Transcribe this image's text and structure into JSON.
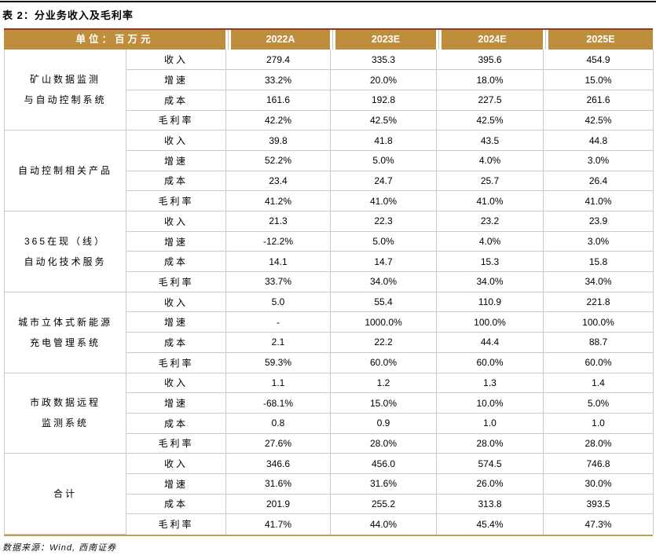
{
  "title": "表 2：分业务收入及毛利率",
  "source_note": "数据来源：Wind, 西南证券",
  "colors": {
    "header_gold": "#BE8E3D",
    "header_top_line": "#8E3B2B",
    "table_bottom_line": "#C89B52",
    "grid_line": "#C9C9C9",
    "header_text": "#FFFFFF",
    "title_rule": "#000000"
  },
  "table": {
    "unit_label": "单位：百万元",
    "year_headers": [
      "2022A",
      "2023E",
      "2024E",
      "2025E"
    ],
    "groups": [
      {
        "name": "矿山数据监测\n与自动控制系统",
        "rows": [
          {
            "metric": "收入",
            "values": [
              "279.4",
              "335.3",
              "395.6",
              "454.9"
            ]
          },
          {
            "metric": "增速",
            "values": [
              "33.2%",
              "20.0%",
              "18.0%",
              "15.0%"
            ]
          },
          {
            "metric": "成本",
            "values": [
              "161.6",
              "192.8",
              "227.5",
              "261.6"
            ]
          },
          {
            "metric": "毛利率",
            "values": [
              "42.2%",
              "42.5%",
              "42.5%",
              "42.5%"
            ]
          }
        ]
      },
      {
        "name": "自动控制相关产品",
        "rows": [
          {
            "metric": "收入",
            "values": [
              "39.8",
              "41.8",
              "43.5",
              "44.8"
            ]
          },
          {
            "metric": "增速",
            "values": [
              "52.2%",
              "5.0%",
              "4.0%",
              "3.0%"
            ]
          },
          {
            "metric": "成本",
            "values": [
              "23.4",
              "24.7",
              "25.7",
              "26.4"
            ]
          },
          {
            "metric": "毛利率",
            "values": [
              "41.2%",
              "41.0%",
              "41.0%",
              "41.0%"
            ]
          }
        ]
      },
      {
        "name": "365在现（线）\n自动化技术服务",
        "rows": [
          {
            "metric": "收入",
            "values": [
              "21.3",
              "22.3",
              "23.2",
              "23.9"
            ]
          },
          {
            "metric": "增速",
            "values": [
              "-12.2%",
              "5.0%",
              "4.0%",
              "3.0%"
            ]
          },
          {
            "metric": "成本",
            "values": [
              "14.1",
              "14.7",
              "15.3",
              "15.8"
            ]
          },
          {
            "metric": "毛利率",
            "values": [
              "33.7%",
              "34.0%",
              "34.0%",
              "34.0%"
            ]
          }
        ]
      },
      {
        "name": "城市立体式新能源\n充电管理系统",
        "rows": [
          {
            "metric": "收入",
            "values": [
              "5.0",
              "55.4",
              "110.9",
              "221.8"
            ]
          },
          {
            "metric": "增速",
            "values": [
              "-",
              "1000.0%",
              "100.0%",
              "100.0%"
            ]
          },
          {
            "metric": "成本",
            "values": [
              "2.1",
              "22.2",
              "44.4",
              "88.7"
            ]
          },
          {
            "metric": "毛利率",
            "values": [
              "59.3%",
              "60.0%",
              "60.0%",
              "60.0%"
            ]
          }
        ]
      },
      {
        "name": "市政数据远程\n监测系统",
        "rows": [
          {
            "metric": "收入",
            "values": [
              "1.1",
              "1.2",
              "1.3",
              "1.4"
            ]
          },
          {
            "metric": "增速",
            "values": [
              "-68.1%",
              "15.0%",
              "10.0%",
              "5.0%"
            ]
          },
          {
            "metric": "成本",
            "values": [
              "0.8",
              "0.9",
              "1.0",
              "1.0"
            ]
          },
          {
            "metric": "毛利率",
            "values": [
              "27.6%",
              "28.0%",
              "28.0%",
              "28.0%"
            ]
          }
        ]
      },
      {
        "name": "合计",
        "rows": [
          {
            "metric": "收入",
            "values": [
              "346.6",
              "456.0",
              "574.5",
              "746.8"
            ]
          },
          {
            "metric": "增速",
            "values": [
              "31.6%",
              "31.6%",
              "26.0%",
              "30.0%"
            ]
          },
          {
            "metric": "成本",
            "values": [
              "201.9",
              "255.2",
              "313.8",
              "393.5"
            ]
          },
          {
            "metric": "毛利率",
            "values": [
              "41.7%",
              "44.0%",
              "45.4%",
              "47.3%"
            ]
          }
        ]
      }
    ]
  }
}
